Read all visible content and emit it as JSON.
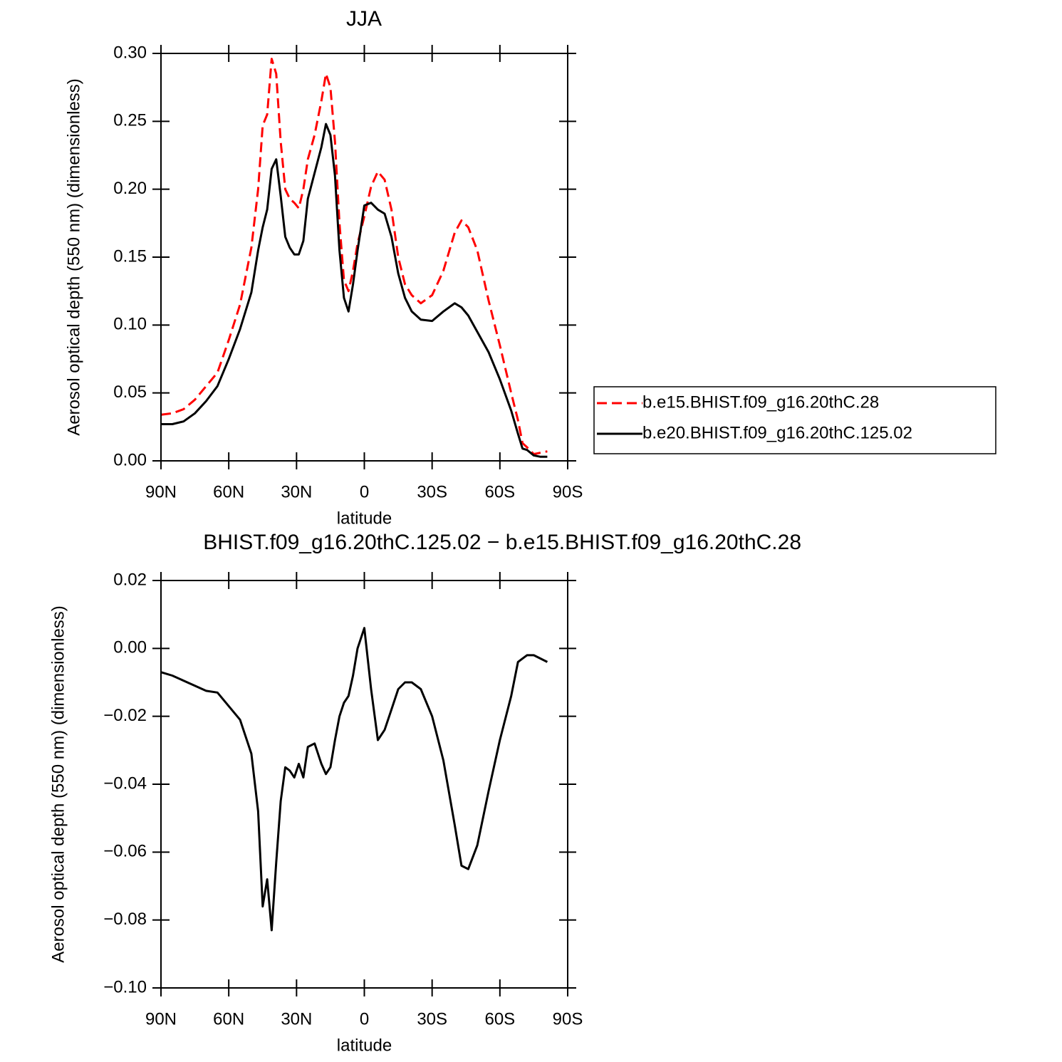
{
  "chart_data": [
    {
      "type": "line",
      "title": "JJA",
      "xlabel": "latitude",
      "ylabel": "Aerosol optical depth (550 nm) (dimensionless)",
      "x": [
        90,
        85,
        80,
        75,
        70,
        65,
        60,
        55,
        50,
        47,
        45,
        43,
        41,
        39,
        37,
        35,
        33,
        31,
        29,
        27,
        25,
        22,
        19,
        17,
        15,
        13,
        11,
        9,
        7,
        5,
        3,
        0,
        -3,
        -6,
        -9,
        -12,
        -15,
        -18,
        -21,
        -25,
        -30,
        -35,
        -40,
        -43,
        -46,
        -50,
        -55,
        -60,
        -65,
        -68,
        -70,
        -72,
        -75,
        -78,
        -81
      ],
      "series": [
        {
          "name": "b.e15.BHIST.f09_g16.20thC.28",
          "color": "#ff0000",
          "line_style": "dashed",
          "values": [
            0.034,
            0.035,
            0.038,
            0.045,
            0.055,
            0.065,
            0.089,
            0.115,
            0.157,
            0.2,
            0.247,
            0.255,
            0.296,
            0.285,
            0.235,
            0.2,
            0.193,
            0.19,
            0.186,
            0.2,
            0.222,
            0.24,
            0.265,
            0.285,
            0.275,
            0.235,
            0.175,
            0.133,
            0.125,
            0.14,
            0.16,
            0.18,
            0.202,
            0.213,
            0.207,
            0.185,
            0.15,
            0.13,
            0.122,
            0.116,
            0.122,
            0.14,
            0.168,
            0.177,
            0.172,
            0.155,
            0.118,
            0.085,
            0.05,
            0.03,
            0.013,
            0.01,
            0.005,
            0.006,
            0.007
          ]
        },
        {
          "name": "b.e20.BHIST.f09_g16.20thC.125.02",
          "color": "#000000",
          "line_style": "solid",
          "values": [
            0.027,
            0.027,
            0.029,
            0.035,
            0.044,
            0.055,
            0.075,
            0.097,
            0.124,
            0.155,
            0.172,
            0.185,
            0.215,
            0.222,
            0.195,
            0.165,
            0.157,
            0.152,
            0.152,
            0.162,
            0.193,
            0.212,
            0.231,
            0.248,
            0.24,
            0.21,
            0.155,
            0.12,
            0.11,
            0.13,
            0.155,
            0.188,
            0.19,
            0.185,
            0.182,
            0.165,
            0.138,
            0.12,
            0.11,
            0.104,
            0.103,
            0.11,
            0.116,
            0.113,
            0.107,
            0.095,
            0.08,
            0.06,
            0.037,
            0.02,
            0.009,
            0.008,
            0.004,
            0.003,
            0.003
          ]
        }
      ],
      "xlim": [
        90,
        -90
      ],
      "xticks": [
        {
          "value": 90,
          "label": "90N"
        },
        {
          "value": 60,
          "label": "60N"
        },
        {
          "value": 30,
          "label": "30N"
        },
        0,
        {
          "value": -30,
          "label": "30S"
        },
        {
          "value": -60,
          "label": "60S"
        },
        {
          "value": -90,
          "label": "90S"
        }
      ],
      "ylim": [
        0,
        0.3
      ],
      "yticks": [
        {
          "value": 0,
          "label": "0.00"
        },
        {
          "value": 0.05,
          "label": "0.05"
        },
        {
          "value": 0.1,
          "label": "0.10"
        },
        {
          "value": 0.15,
          "label": "0.15"
        },
        {
          "value": 0.2,
          "label": "0.20"
        },
        {
          "value": 0.25,
          "label": "0.25"
        },
        {
          "value": 0.3,
          "label": "0.30"
        }
      ],
      "legend": "right"
    },
    {
      "type": "line",
      "title": "BHIST.f09_g16.20thC.125.02 − b.e15.BHIST.f09_g16.20thC.28",
      "xlabel": "latitude",
      "ylabel": "Aerosol optical depth (550 nm) (dimensionless)",
      "x": [
        90,
        85,
        80,
        75,
        70,
        65,
        60,
        55,
        50,
        47,
        45,
        43,
        41,
        39,
        37,
        35,
        33,
        31,
        29,
        27,
        25,
        22,
        19,
        17,
        15,
        13,
        11,
        9,
        7,
        5,
        3,
        0,
        -3,
        -6,
        -9,
        -12,
        -15,
        -18,
        -21,
        -25,
        -30,
        -35,
        -40,
        -43,
        -46,
        -50,
        -55,
        -60,
        -65,
        -68,
        -70,
        -72,
        -75,
        -78,
        -81
      ],
      "values": [
        -0.007,
        -0.008,
        -0.0095,
        -0.011,
        -0.0125,
        -0.013,
        -0.017,
        -0.021,
        -0.031,
        -0.048,
        -0.076,
        -0.068,
        -0.083,
        -0.063,
        -0.045,
        -0.035,
        -0.036,
        -0.038,
        -0.034,
        -0.038,
        -0.029,
        -0.028,
        -0.034,
        -0.037,
        -0.035,
        -0.027,
        -0.02,
        -0.016,
        -0.014,
        -0.008,
        0,
        0.006,
        -0.012,
        -0.027,
        -0.024,
        -0.018,
        -0.012,
        -0.01,
        -0.01,
        -0.012,
        -0.02,
        -0.033,
        -0.052,
        -0.064,
        -0.065,
        -0.058,
        -0.042,
        -0.027,
        -0.014,
        -0.004,
        -0.003,
        -0.002,
        -0.002,
        -0.003,
        -0.004
      ],
      "color": "#000000",
      "xlim": [
        90,
        -90
      ],
      "xticks": [
        {
          "value": 90,
          "label": "90N"
        },
        {
          "value": 60,
          "label": "60N"
        },
        {
          "value": 30,
          "label": "30N"
        },
        0,
        {
          "value": -30,
          "label": "30S"
        },
        {
          "value": -60,
          "label": "60S"
        },
        {
          "value": -90,
          "label": "90S"
        }
      ],
      "ylim": [
        -0.1,
        0.02
      ],
      "yticks": [
        {
          "value": -0.1,
          "label": "−0.10"
        },
        {
          "value": -0.08,
          "label": "−0.08"
        },
        {
          "value": -0.06,
          "label": "−0.06"
        },
        {
          "value": -0.04,
          "label": "−0.04"
        },
        {
          "value": -0.02,
          "label": "−0.02"
        },
        {
          "value": 0,
          "label": "0.00"
        },
        {
          "value": 0.02,
          "label": "0.02"
        }
      ]
    }
  ]
}
